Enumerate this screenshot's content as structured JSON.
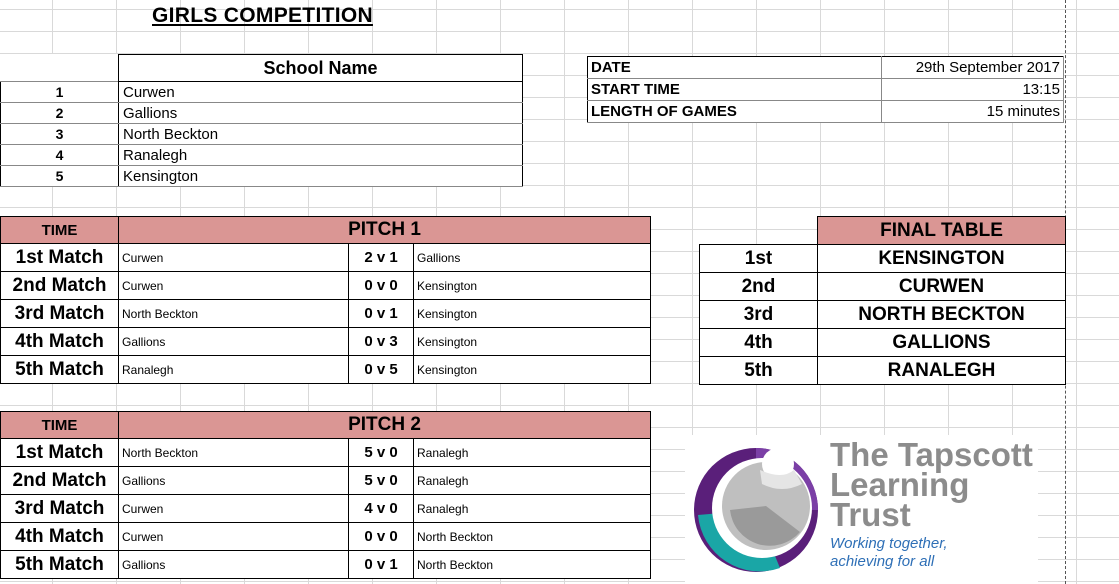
{
  "title": "GIRLS COMPETITION",
  "schools": {
    "header": "School Name",
    "rows": [
      {
        "num": "1",
        "name": "Curwen"
      },
      {
        "num": "2",
        "name": "Gallions"
      },
      {
        "num": "3",
        "name": "North Beckton"
      },
      {
        "num": "4",
        "name": "Ranalegh"
      },
      {
        "num": "5",
        "name": "Kensington"
      }
    ]
  },
  "info": {
    "date_label": "DATE",
    "date_value": "29th September 2017",
    "start_label": "START TIME",
    "start_value": "13:15",
    "length_label": "LENGTH OF GAMES",
    "length_value": "15 minutes"
  },
  "pitch1": {
    "time_label": "TIME",
    "title": "PITCH 1",
    "matches": [
      {
        "match": "1st Match",
        "home": "Curwen",
        "score": "2 v 1",
        "away": "Gallions"
      },
      {
        "match": "2nd Match",
        "home": "Curwen",
        "score": "0 v 0",
        "away": "Kensington"
      },
      {
        "match": "3rd Match",
        "home": "North Beckton",
        "score": "0 v 1",
        "away": "Kensington"
      },
      {
        "match": "4th Match",
        "home": "Gallions",
        "score": "0 v 3",
        "away": "Kensington"
      },
      {
        "match": "5th Match",
        "home": "Ranalegh",
        "score": "0 v 5",
        "away": "Kensington"
      }
    ]
  },
  "pitch2": {
    "time_label": "TIME",
    "title": "PITCH 2",
    "matches": [
      {
        "match": "1st Match",
        "home": "North Beckton",
        "score": "5 v 0",
        "away": "Ranalegh"
      },
      {
        "match": "2nd Match",
        "home": "Gallions",
        "score": "5 v 0",
        "away": "Ranalegh"
      },
      {
        "match": "3rd Match",
        "home": "Curwen",
        "score": "4 v 0",
        "away": "Ranalegh"
      },
      {
        "match": "4th Match",
        "home": "Curwen",
        "score": "0 v 0",
        "away": "North Beckton"
      },
      {
        "match": "5th Match",
        "home": "Gallions",
        "score": "0 v 1",
        "away": "North Beckton"
      }
    ]
  },
  "final_table": {
    "title": "FINAL TABLE",
    "rows": [
      {
        "pos": "1st",
        "team": "KENSINGTON"
      },
      {
        "pos": "2nd",
        "team": "CURWEN"
      },
      {
        "pos": "3rd",
        "team": "NORTH BECKTON"
      },
      {
        "pos": "4th",
        "team": "GALLIONS"
      },
      {
        "pos": "5th",
        "team": "RANALEGH"
      }
    ]
  },
  "logo": {
    "line1": "The Tapscott",
    "line2": "Learning",
    "line3": "Trust",
    "tag1": "Working together,",
    "tag2": "achieving for all"
  },
  "colors": {
    "header_fill": "#da9694",
    "logo_grey": "#8c8c8c",
    "logo_blue": "#2e6fb6",
    "logo_purple": "#6a2c91",
    "logo_teal": "#1aa6a6"
  }
}
